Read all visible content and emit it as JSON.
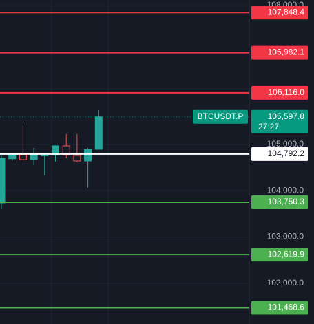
{
  "chart_data": {
    "type": "candlestick",
    "ylim": [
      101120,
      108120
    ],
    "yticks": [
      {
        "value": 108000,
        "label": "108,000.0"
      },
      {
        "value": 105000,
        "label": "105,000.0"
      },
      {
        "value": 104000,
        "label": "104,000.0"
      },
      {
        "value": 103000,
        "label": "103,000.0"
      },
      {
        "value": 102000,
        "label": "102,000.0"
      }
    ],
    "grid": true,
    "up_color": "#26a69a",
    "down_color": "#ef5350",
    "open": [
      103737,
      104690,
      104777,
      104680,
      104762,
      104777,
      104970,
      104762,
      104643,
      104896
    ],
    "high": [
      104760,
      104800,
      105416,
      104926,
      104790,
      104980,
      105223,
      105223,
      104926,
      105743
    ],
    "low": [
      103600,
      104650,
      104660,
      104554,
      104331,
      104629,
      104703,
      104614,
      104064,
      104890
    ],
    "close": [
      104700,
      104780,
      104673,
      104777,
      104770,
      104970,
      104777,
      104643,
      104896,
      105597.8
    ],
    "price_lines": [
      {
        "value": 107848.4,
        "label": "107,848.4",
        "color": "#f23645"
      },
      {
        "value": 106982.1,
        "label": "106,982.1",
        "color": "#f23645"
      },
      {
        "value": 106116.0,
        "label": "106,116.0",
        "color": "#f23645"
      },
      {
        "value": 104792.2,
        "label": "104,792.2",
        "color": "#ffffff"
      },
      {
        "value": 103750.3,
        "label": "103,750.3",
        "color": "#4caf50"
      },
      {
        "value": 102619.9,
        "label": "102,619.9",
        "color": "#4caf50"
      },
      {
        "value": 101468.6,
        "label": "101,468.6",
        "color": "#4caf50"
      }
    ],
    "last_price": {
      "symbol": "BTCUSDT.P",
      "value": 105597.8,
      "label": "105,597.8",
      "countdown": "27:27",
      "color": "#089981"
    }
  }
}
